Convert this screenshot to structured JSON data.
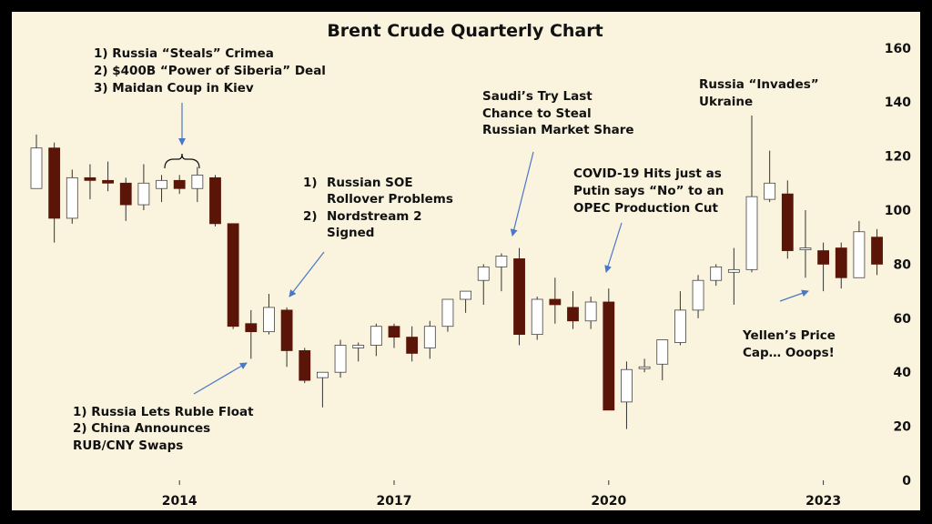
{
  "chart_data": {
    "type": "candlestick",
    "title": "Brent Crude Quarterly Chart",
    "xlabel": "",
    "ylabel": "",
    "ylim": [
      0,
      160
    ],
    "y_ticks": [
      0,
      20,
      40,
      60,
      80,
      100,
      120,
      140,
      160
    ],
    "x_tick_labels": [
      {
        "label": "2014",
        "index": 8
      },
      {
        "label": "2017",
        "index": 20
      },
      {
        "label": "2020",
        "index": 32
      },
      {
        "label": "2023",
        "index": 44
      }
    ],
    "grid": false,
    "colors": {
      "up": "#ffffff",
      "down": "#5a1408",
      "wick": "#333333",
      "arrow": "#4a78c8",
      "background": "#faf3dd",
      "frame": "#000000"
    },
    "candles": [
      {
        "open": 108,
        "high": 128,
        "low": 108,
        "close": 123
      },
      {
        "open": 123,
        "high": 125,
        "low": 88,
        "close": 97
      },
      {
        "open": 97,
        "high": 115,
        "low": 95,
        "close": 112
      },
      {
        "open": 112,
        "high": 117,
        "low": 104,
        "close": 111
      },
      {
        "open": 111,
        "high": 118,
        "low": 107,
        "close": 110
      },
      {
        "open": 110,
        "high": 112,
        "low": 96,
        "close": 102
      },
      {
        "open": 102,
        "high": 117,
        "low": 100,
        "close": 110
      },
      {
        "open": 108,
        "high": 113,
        "low": 103,
        "close": 111
      },
      {
        "open": 111,
        "high": 113,
        "low": 106,
        "close": 108
      },
      {
        "open": 108,
        "high": 116,
        "low": 103,
        "close": 113
      },
      {
        "open": 112,
        "high": 113,
        "low": 94,
        "close": 95
      },
      {
        "open": 95,
        "high": 95,
        "low": 56,
        "close": 57
      },
      {
        "open": 58,
        "high": 63,
        "low": 45,
        "close": 55
      },
      {
        "open": 55,
        "high": 69,
        "low": 54,
        "close": 64
      },
      {
        "open": 63,
        "high": 64,
        "low": 42,
        "close": 48
      },
      {
        "open": 48,
        "high": 49,
        "low": 36,
        "close": 37
      },
      {
        "open": 38,
        "high": 40,
        "low": 27,
        "close": 40
      },
      {
        "open": 40,
        "high": 52,
        "low": 38,
        "close": 50
      },
      {
        "open": 49,
        "high": 51,
        "low": 44,
        "close": 50
      },
      {
        "open": 50,
        "high": 58,
        "low": 46,
        "close": 57
      },
      {
        "open": 57,
        "high": 58,
        "low": 49,
        "close": 53
      },
      {
        "open": 53,
        "high": 57,
        "low": 44,
        "close": 47
      },
      {
        "open": 49,
        "high": 59,
        "low": 45,
        "close": 57
      },
      {
        "open": 57,
        "high": 67,
        "low": 55,
        "close": 67
      },
      {
        "open": 67,
        "high": 70,
        "low": 62,
        "close": 70
      },
      {
        "open": 74,
        "high": 80,
        "low": 65,
        "close": 79
      },
      {
        "open": 79,
        "high": 84,
        "low": 70,
        "close": 83
      },
      {
        "open": 82,
        "high": 86,
        "low": 50,
        "close": 54
      },
      {
        "open": 54,
        "high": 68,
        "low": 52,
        "close": 67
      },
      {
        "open": 67,
        "high": 75,
        "low": 58,
        "close": 65
      },
      {
        "open": 64,
        "high": 70,
        "low": 56,
        "close": 59
      },
      {
        "open": 59,
        "high": 68,
        "low": 56,
        "close": 66
      },
      {
        "open": 66,
        "high": 71,
        "low": 26,
        "close": 26
      },
      {
        "open": 29,
        "high": 44,
        "low": 19,
        "close": 41
      },
      {
        "open": 42,
        "high": 45,
        "low": 40,
        "close": 42
      },
      {
        "open": 43,
        "high": 52,
        "low": 37,
        "close": 52
      },
      {
        "open": 51,
        "high": 70,
        "low": 50,
        "close": 63
      },
      {
        "open": 63,
        "high": 76,
        "low": 60,
        "close": 74
      },
      {
        "open": 74,
        "high": 80,
        "low": 72,
        "close": 79
      },
      {
        "open": 77,
        "high": 86,
        "low": 65,
        "close": 78
      },
      {
        "open": 78,
        "high": 135,
        "low": 77,
        "close": 105
      },
      {
        "open": 104,
        "high": 122,
        "low": 103,
        "close": 110
      },
      {
        "open": 106,
        "high": 111,
        "low": 82,
        "close": 85
      },
      {
        "open": 86,
        "high": 100,
        "low": 75,
        "close": 86
      },
      {
        "open": 85,
        "high": 88,
        "low": 70,
        "close": 80
      },
      {
        "open": 86,
        "high": 88,
        "low": 71,
        "close": 75
      },
      {
        "open": 75,
        "high": 96,
        "low": 75,
        "close": 92
      },
      {
        "open": 90,
        "high": 93,
        "low": 76,
        "close": 80
      }
    ],
    "annotations": [
      {
        "lines": [
          "1)  Russia “Steals” Crimea",
          "2)  $400B “Power of Siberia” Deal",
          "3)  Maidan Coup in Kiev"
        ]
      },
      {
        "lines": [
          "1)",
          "Russian SOE",
          "Rollover Problems",
          "2)",
          "Nordstream 2",
          "Signed"
        ]
      },
      {
        "lines": [
          "1) Russia Lets Ruble Float",
          "2) China Announces",
          "RUB/CNY Swaps"
        ]
      },
      {
        "lines": [
          "Saudi’s Try Last",
          "Chance to Steal",
          "Russian Market Share"
        ]
      },
      {
        "lines": [
          "COVID-19 Hits just as",
          "Putin says “No” to an",
          "OPEC Production Cut"
        ]
      },
      {
        "lines": [
          "Russia “Invades”",
          "Ukraine"
        ]
      },
      {
        "lines": [
          "Yellen’s Price",
          "Cap… Ooops!"
        ]
      }
    ]
  }
}
